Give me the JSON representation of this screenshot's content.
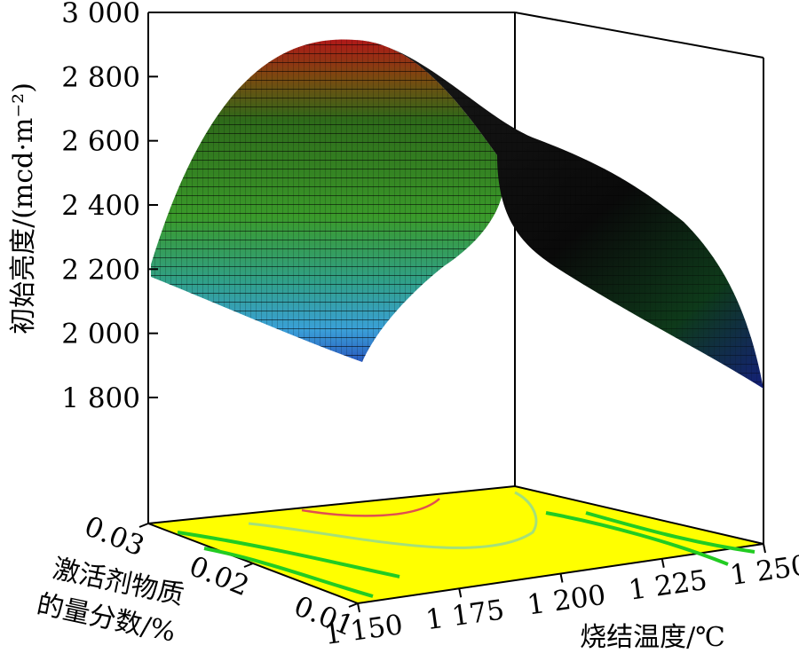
{
  "chart_data": {
    "type": "surface3d",
    "title": "",
    "zlabel": "初始亮度/(mcd·m⁻²)",
    "xlabel": "烧结温度/℃",
    "ylabel_line1": "激活剂物质",
    "ylabel_line2": "的量分数/%",
    "z_ticks": [
      "3 000",
      "2 800",
      "2 600",
      "2 400",
      "2 200",
      "2 000",
      "1 800"
    ],
    "x_ticks": [
      "1 150",
      "1 175",
      "1 200",
      "1 225",
      "1 250"
    ],
    "y_ticks": [
      "0.01",
      "0.02",
      "0.03"
    ],
    "x_range": [
      1150,
      1250
    ],
    "y_range": [
      0.01,
      0.03
    ],
    "z_range": [
      1600,
      3000
    ],
    "surface_samples": [
      {
        "x": 1150,
        "y": 0.03,
        "z": 2170
      },
      {
        "x": 1150,
        "y": 0.01,
        "z": 2000
      },
      {
        "x": 1200,
        "y": 0.03,
        "z": 2850
      },
      {
        "x": 1250,
        "y": 0.03,
        "z": 2570
      },
      {
        "x": 1250,
        "y": 0.01,
        "z": 1830
      }
    ],
    "contour_projection": "floor",
    "colormap": [
      "#1a2a8a",
      "#3aa0e0",
      "#40c0a0",
      "#2e8b2e",
      "#d0d020",
      "#c03030"
    ],
    "floor_color": "#ffff00",
    "grid": false,
    "legend": "none"
  }
}
